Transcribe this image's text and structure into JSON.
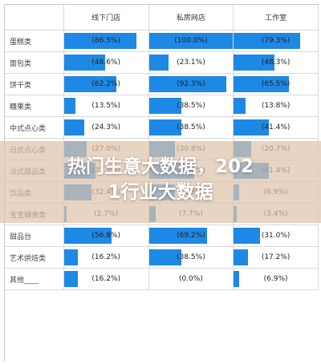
{
  "header": {
    "col1": "线下门店",
    "col2": "私房网店",
    "col3": "工作室"
  },
  "overlay": {
    "line1": "热门生意大数据，202",
    "line2": "1行业大数据"
  },
  "colors": {
    "bar": "#1e88e5",
    "band": "#dec4ac"
  },
  "rows": [
    {
      "label": "蛋糕类",
      "v1": "(86.5%)",
      "v2": "(100.0%)",
      "v3": "(79.3%)",
      "f1": 0.865,
      "f2": 1.0,
      "f3": 0.793
    },
    {
      "label": "面包类",
      "v1": "(48.6%)",
      "v2": "(23.1%)",
      "v3": "(48.3%)",
      "f1": 0.486,
      "f2": 0.231,
      "f3": 0.483
    },
    {
      "label": "饼干类",
      "v1": "(62.2%)",
      "v2": "(92.3%)",
      "v3": "(65.5%)",
      "f1": 0.622,
      "f2": 0.923,
      "f3": 0.655
    },
    {
      "label": "糖果类",
      "v1": "(13.5%)",
      "v2": "(38.5%)",
      "v3": "(13.8%)",
      "f1": 0.135,
      "f2": 0.385,
      "f3": 0.138
    },
    {
      "label": "中式点心类",
      "v1": "(24.3%)",
      "v2": "(38.5%)",
      "v3": "(41.4%)",
      "f1": 0.243,
      "f2": 0.385,
      "f3": 0.414
    },
    {
      "label": "日式点心类",
      "v1": "(27.0%)",
      "v2": "(30.8%)",
      "v3": "(20.7%)",
      "f1": 0.27,
      "f2": 0.308,
      "f3": 0.207
    },
    {
      "label": "法式甜品类",
      "v1": "(37.8%)",
      "v2": "(53.8%)",
      "v3": "(41.4%)",
      "f1": 0.378,
      "f2": 0.538,
      "f3": 0.414
    },
    {
      "label": "饮品类",
      "v1": "(32.4%)",
      "v2": "(30.8%)",
      "v3": "(6.9%)",
      "f1": 0.324,
      "f2": 0.308,
      "f3": 0.069
    },
    {
      "label": "宝宝辅食类",
      "v1": "(2.7%)",
      "v2": "(7.7%)",
      "v3": "(3.4%)",
      "f1": 0.027,
      "f2": 0.077,
      "f3": 0.034
    },
    {
      "label": "甜品台",
      "v1": "(56.8%)",
      "v2": "(69.2%)",
      "v3": "(31.0%)",
      "f1": 0.568,
      "f2": 0.692,
      "f3": 0.31
    },
    {
      "label": "艺术烘焙类",
      "v1": "(16.2%)",
      "v2": "(38.5%)",
      "v3": "(17.2%)",
      "f1": 0.162,
      "f2": 0.385,
      "f3": 0.172
    },
    {
      "label": "其他____",
      "v1": "(16.2%)",
      "v2": "(0.0%)",
      "v3": "(6.9%)",
      "f1": 0.162,
      "f2": 0.0,
      "f3": 0.069
    }
  ]
}
